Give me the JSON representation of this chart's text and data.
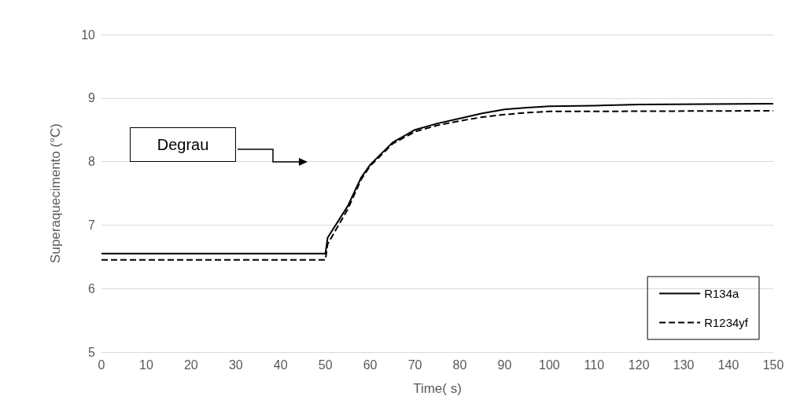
{
  "chart_data": {
    "type": "line",
    "xlabel": "Time( s)",
    "ylabel": "Superaquecimento (°C)",
    "xlim": [
      0,
      150
    ],
    "xticks": [
      0,
      10,
      20,
      30,
      40,
      50,
      60,
      70,
      80,
      90,
      100,
      110,
      120,
      130,
      140,
      150
    ],
    "ylim": [
      5,
      10
    ],
    "yticks": [
      5,
      6,
      7,
      8,
      9,
      10
    ],
    "grid": "y",
    "legend": "bottom right",
    "marker": "none",
    "annotations": [
      "Degrau"
    ],
    "series": [
      {
        "name": "R134a",
        "color": "#000000",
        "line_style": "solid",
        "x": [
          0,
          50,
          50.5,
          55,
          58,
          60,
          65,
          70,
          75,
          80,
          85,
          90,
          95,
          100,
          110,
          120,
          150
        ],
        "values": [
          6.55,
          6.55,
          6.8,
          7.3,
          7.75,
          7.95,
          8.3,
          8.5,
          8.6,
          8.68,
          8.76,
          8.82,
          8.85,
          8.87,
          8.88,
          8.9,
          8.91
        ]
      },
      {
        "name": "R1234yf",
        "color": "#000000",
        "line_style": "dashed",
        "x": [
          0,
          50,
          50.5,
          55,
          58,
          60,
          65,
          70,
          75,
          80,
          85,
          90,
          95,
          100,
          110,
          150
        ],
        "values": [
          6.45,
          6.45,
          6.7,
          7.25,
          7.72,
          7.93,
          8.28,
          8.47,
          8.57,
          8.64,
          8.7,
          8.74,
          8.77,
          8.79,
          8.79,
          8.8
        ]
      }
    ]
  }
}
